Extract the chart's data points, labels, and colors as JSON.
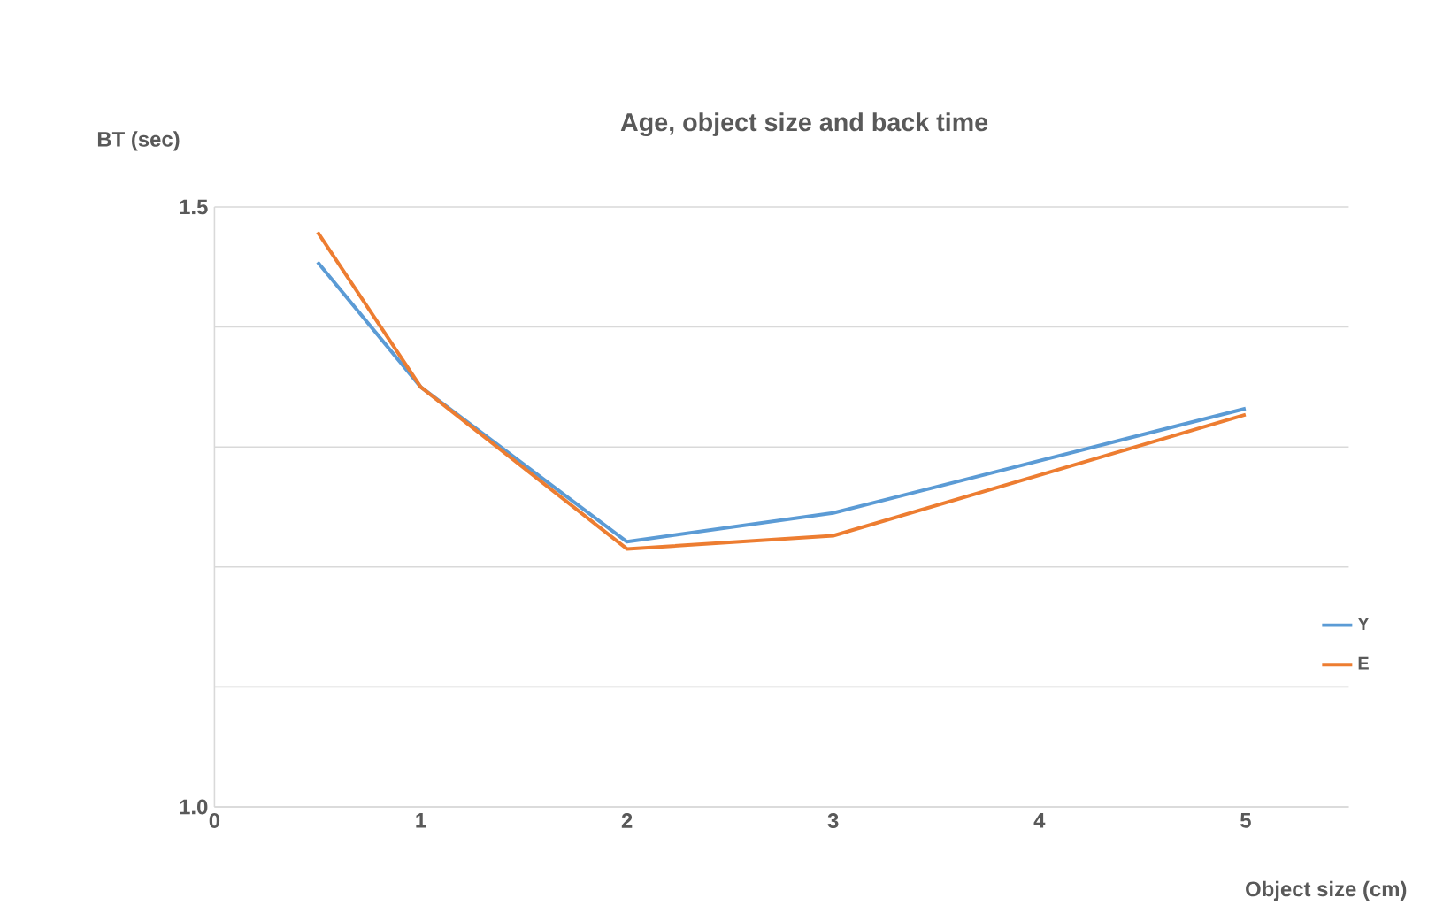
{
  "chart_data": {
    "type": "line",
    "title": "Age, object size and back time",
    "xlabel": "Object size (cm)",
    "ylabel": "BT (sec)",
    "x": [
      0.5,
      1,
      2,
      3,
      5
    ],
    "series": [
      {
        "name": "Y",
        "color": "#5b9bd5",
        "values": [
          1.454,
          1.35,
          1.221,
          1.245,
          1.332
        ]
      },
      {
        "name": "E",
        "color": "#ed7d31",
        "values": [
          1.479,
          1.35,
          1.215,
          1.226,
          1.327
        ]
      }
    ],
    "xlim": [
      0,
      5.5
    ],
    "xticks": [
      0,
      1,
      2,
      3,
      4,
      5
    ],
    "ylim": [
      1.0,
      1.5
    ],
    "yticks": [
      {
        "value": 1.0,
        "label": "1.0"
      },
      {
        "value": 1.1,
        "label": null
      },
      {
        "value": 1.2,
        "label": null
      },
      {
        "value": 1.3,
        "label": null
      },
      {
        "value": 1.4,
        "label": null
      },
      {
        "value": 1.5,
        "label": "1.5"
      }
    ],
    "grid": "y",
    "legend": "right",
    "marker": "none"
  }
}
